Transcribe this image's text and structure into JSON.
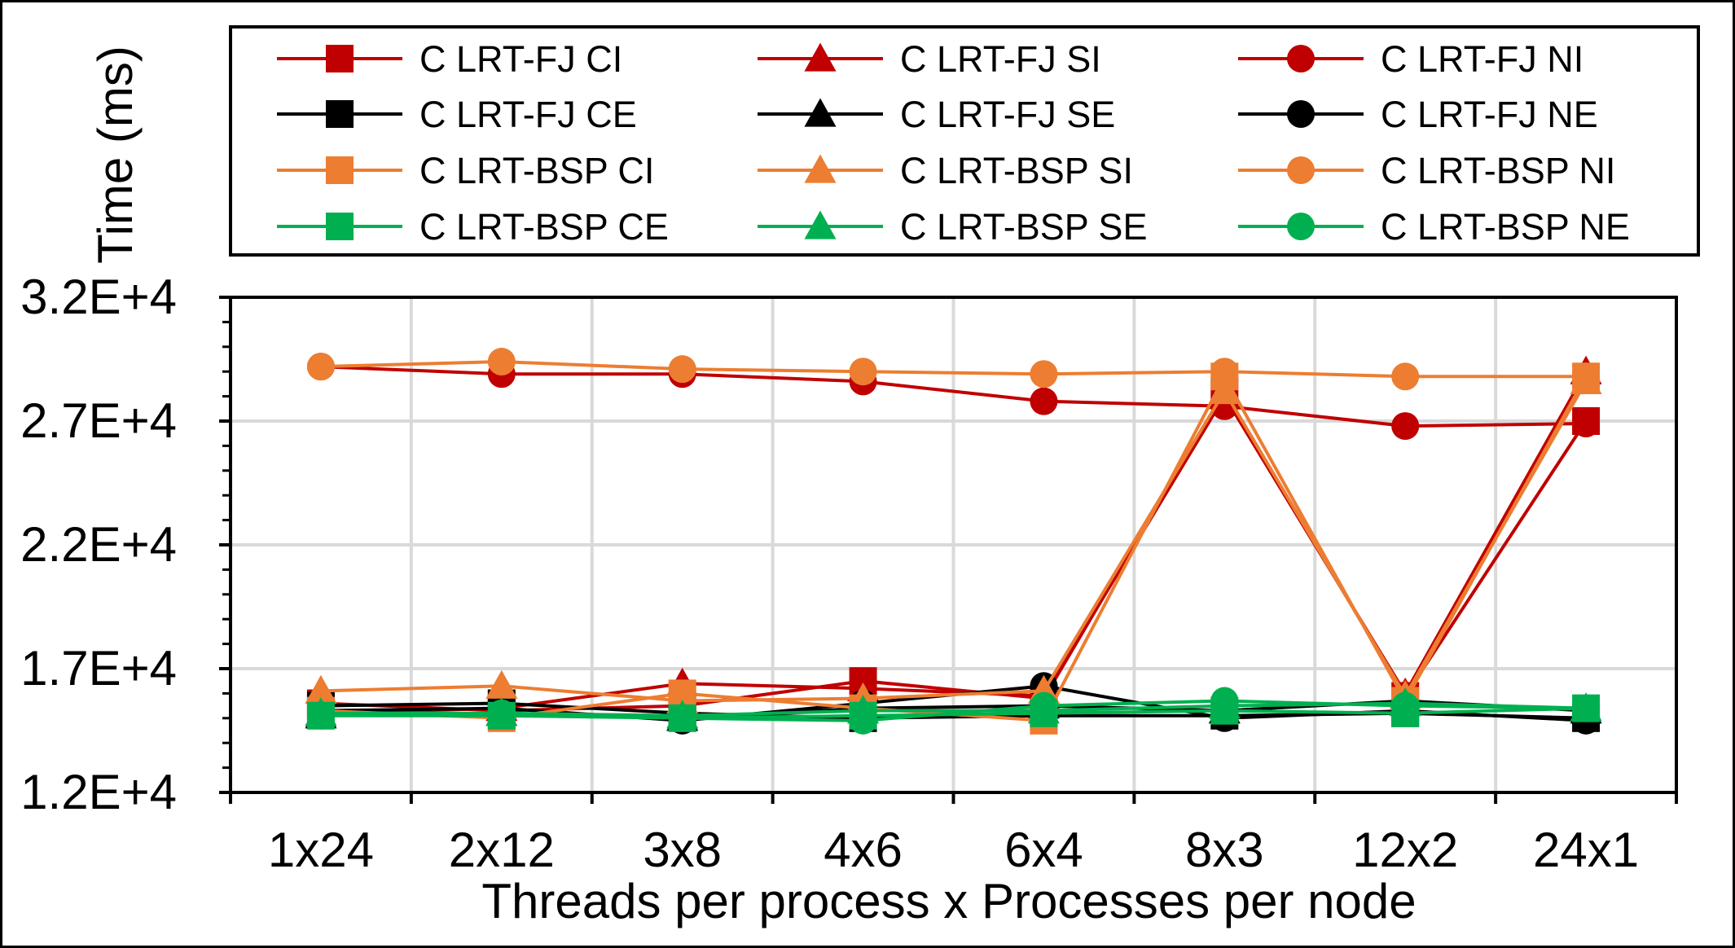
{
  "chart_data": {
    "type": "line",
    "xlabel": "Threads per process x Processes per node",
    "ylabel": "Time (ms)",
    "categories": [
      "1x24",
      "2x12",
      "3x8",
      "4x6",
      "6x4",
      "8x3",
      "12x2",
      "24x1"
    ],
    "ylim": [
      12000,
      32000
    ],
    "yticks": [
      "1.2E+4",
      "1.7E+4",
      "2.2E+4",
      "2.7E+4",
      "3.2E+4"
    ],
    "grid": true,
    "legend_position": "top",
    "series": [
      {
        "name": "C LRT-FJ CI",
        "color": "#C00000",
        "marker": "square",
        "values": [
          15600,
          15300,
          15500,
          16500,
          15800,
          28200,
          15900,
          27000
        ]
      },
      {
        "name": "C LRT-FJ SI",
        "color": "#C00000",
        "marker": "triangle",
        "values": [
          15200,
          15400,
          16400,
          16200,
          15900,
          28000,
          16000,
          29000
        ]
      },
      {
        "name": "C LRT-FJ NI",
        "color": "#C00000",
        "marker": "circle",
        "values": [
          29200,
          28900,
          28900,
          28600,
          27800,
          27600,
          26800,
          26900
        ]
      },
      {
        "name": "C LRT-FJ CE",
        "color": "#000000",
        "marker": "square",
        "values": [
          15500,
          15600,
          15200,
          15000,
          15100,
          15100,
          15200,
          15000
        ]
      },
      {
        "name": "C LRT-FJ SE",
        "color": "#000000",
        "marker": "triangle",
        "values": [
          15100,
          15200,
          15000,
          15400,
          15500,
          15300,
          15700,
          15300
        ]
      },
      {
        "name": "C LRT-FJ NE",
        "color": "#000000",
        "marker": "circle",
        "values": [
          15300,
          15400,
          14900,
          15600,
          16300,
          15000,
          15300,
          14900
        ]
      },
      {
        "name": "C LRT-BSP CI",
        "color": "#ED7D31",
        "marker": "square",
        "values": [
          15300,
          15000,
          16000,
          15400,
          14900,
          28800,
          15700,
          28800
        ]
      },
      {
        "name": "C LRT-BSP SI",
        "color": "#ED7D31",
        "marker": "triangle",
        "values": [
          16100,
          16300,
          15700,
          15800,
          16100,
          28200,
          15900,
          28600
        ]
      },
      {
        "name": "C LRT-BSP NI",
        "color": "#ED7D31",
        "marker": "circle",
        "values": [
          29200,
          29400,
          29100,
          29000,
          28900,
          29000,
          28800,
          28800
        ]
      },
      {
        "name": "C LRT-BSP CE",
        "color": "#00B050",
        "marker": "square",
        "values": [
          15100,
          15100,
          15000,
          15100,
          15200,
          15300,
          15200,
          15400
        ]
      },
      {
        "name": "C LRT-BSP SE",
        "color": "#00B050",
        "marker": "triangle",
        "values": [
          15200,
          15200,
          15100,
          15300,
          15300,
          15500,
          15600,
          15400
        ]
      },
      {
        "name": "C LRT-BSP NE",
        "color": "#00B050",
        "marker": "circle",
        "values": [
          15100,
          15200,
          15000,
          14900,
          15500,
          15700,
          15500,
          15400
        ]
      }
    ]
  }
}
